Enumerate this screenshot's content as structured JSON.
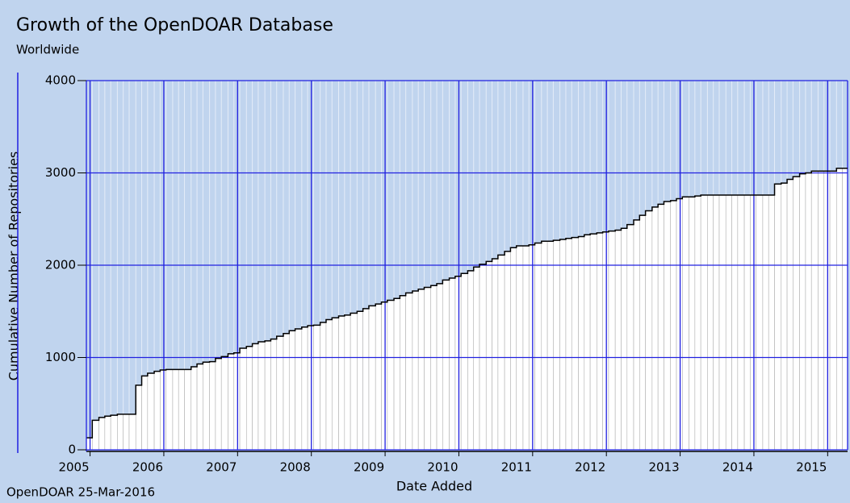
{
  "chart_data": {
    "type": "step",
    "title": "Growth of the OpenDOAR Database",
    "subtitle": "Worldwide",
    "x_label": "Date Added",
    "y_label": "Cumulative Number of Repositories",
    "footer": "OpenDOAR 25-Mar-2016",
    "x": [
      2004.95,
      2005.03,
      2005.12,
      2005.2,
      2005.28,
      2005.37,
      2005.45,
      2005.53,
      2005.62,
      2005.7,
      2005.78,
      2005.87,
      2005.95,
      2006.03,
      2006.12,
      2006.2,
      2006.28,
      2006.37,
      2006.45,
      2006.53,
      2006.62,
      2006.7,
      2006.78,
      2006.87,
      2006.95,
      2007.03,
      2007.12,
      2007.2,
      2007.28,
      2007.37,
      2007.45,
      2007.53,
      2007.62,
      2007.7,
      2007.78,
      2007.87,
      2007.95,
      2008.03,
      2008.12,
      2008.2,
      2008.28,
      2008.37,
      2008.45,
      2008.53,
      2008.62,
      2008.7,
      2008.78,
      2008.87,
      2008.95,
      2009.03,
      2009.12,
      2009.2,
      2009.28,
      2009.37,
      2009.45,
      2009.53,
      2009.62,
      2009.7,
      2009.78,
      2009.87,
      2009.95,
      2010.03,
      2010.12,
      2010.2,
      2010.28,
      2010.37,
      2010.45,
      2010.53,
      2010.62,
      2010.7,
      2010.78,
      2010.87,
      2010.95,
      2011.03,
      2011.12,
      2011.2,
      2011.28,
      2011.37,
      2011.45,
      2011.53,
      2011.62,
      2011.7,
      2011.78,
      2011.87,
      2011.95,
      2012.03,
      2012.12,
      2012.2,
      2012.28,
      2012.37,
      2012.45,
      2012.53,
      2012.62,
      2012.7,
      2012.78,
      2012.87,
      2012.95,
      2013.03,
      2013.12,
      2013.2,
      2013.28,
      2013.37,
      2013.45,
      2013.53,
      2013.62,
      2013.7,
      2013.78,
      2013.87,
      2013.95,
      2014.03,
      2014.12,
      2014.2,
      2014.28,
      2014.37,
      2014.45,
      2014.53,
      2014.62,
      2014.7,
      2014.78,
      2014.87,
      2014.95,
      2015.03,
      2015.12,
      2015.2
    ],
    "values": [
      130,
      320,
      350,
      365,
      375,
      385,
      385,
      385,
      700,
      800,
      830,
      850,
      865,
      870,
      870,
      870,
      870,
      900,
      930,
      950,
      955,
      990,
      1010,
      1040,
      1050,
      1100,
      1120,
      1150,
      1170,
      1180,
      1200,
      1230,
      1260,
      1290,
      1310,
      1330,
      1345,
      1350,
      1380,
      1410,
      1430,
      1450,
      1460,
      1480,
      1500,
      1530,
      1560,
      1580,
      1600,
      1620,
      1640,
      1670,
      1700,
      1720,
      1740,
      1760,
      1780,
      1800,
      1840,
      1860,
      1880,
      1910,
      1940,
      1980,
      2010,
      2040,
      2070,
      2110,
      2150,
      2190,
      2210,
      2210,
      2220,
      2240,
      2260,
      2260,
      2270,
      2280,
      2290,
      2300,
      2310,
      2330,
      2340,
      2350,
      2360,
      2370,
      2380,
      2400,
      2440,
      2490,
      2540,
      2590,
      2630,
      2660,
      2690,
      2700,
      2720,
      2740,
      2740,
      2750,
      2760,
      2760,
      2760,
      2760,
      2760,
      2760,
      2760,
      2760,
      2760,
      2760,
      2760,
      2760,
      2880,
      2890,
      2930,
      2960,
      2990,
      3000,
      3020,
      3020,
      3020,
      3020,
      3050,
      3050
    ],
    "color": "#000000",
    "fill": "#ffffff",
    "xlim": [
      2004.95,
      2015.27
    ],
    "xticks": [
      2005,
      2006,
      2007,
      2008,
      2009,
      2010,
      2011,
      2012,
      2013,
      2014,
      2015
    ],
    "ylim": [
      0,
      4000
    ],
    "yticks": [
      0,
      1000,
      2000,
      3000,
      4000
    ],
    "grid": true
  }
}
